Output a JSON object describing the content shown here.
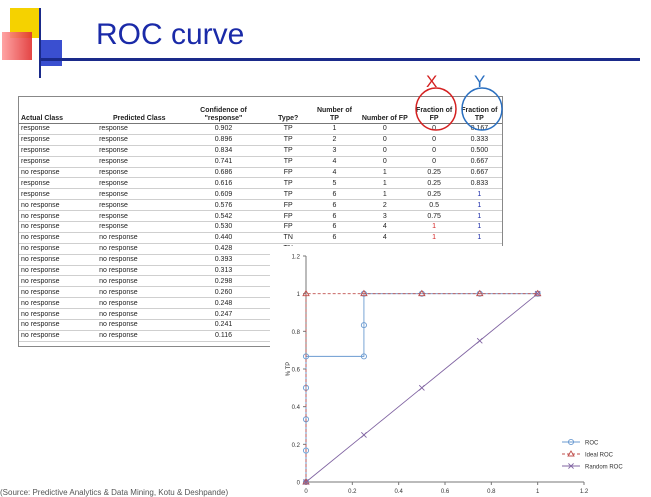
{
  "slide": {
    "title": "ROC curve",
    "x_marker": "X",
    "y_marker": "Y",
    "source": "(Source: Predictive Analytics & Data Mining, Kotu & Deshpande)",
    "colors": {
      "title": "#1a2aa8",
      "x_marker": "#d42020",
      "y_marker": "#2a6fc0",
      "fp_values": "#d42020",
      "tp_values": "#1a2aa8"
    }
  },
  "table": {
    "headers": [
      "Actual Class",
      "Predicted Class",
      "Confidence of \"response\"",
      "Type?",
      "Number of TP",
      "Number of FP",
      "Fraction of FP",
      "Fraction of TP"
    ],
    "rows": [
      [
        "response",
        "response",
        "0.902",
        "TP",
        "1",
        "0",
        "0",
        "0.167"
      ],
      [
        "response",
        "response",
        "0.896",
        "TP",
        "2",
        "0",
        "0",
        "0.333"
      ],
      [
        "response",
        "response",
        "0.834",
        "TP",
        "3",
        "0",
        "0",
        "0.500"
      ],
      [
        "response",
        "response",
        "0.741",
        "TP",
        "4",
        "0",
        "0",
        "0.667"
      ],
      [
        "no response",
        "response",
        "0.686",
        "FP",
        "4",
        "1",
        "0.25",
        "0.667"
      ],
      [
        "response",
        "response",
        "0.616",
        "TP",
        "5",
        "1",
        "0.25",
        "0.833"
      ],
      [
        "response",
        "response",
        "0.609",
        "TP",
        "6",
        "1",
        "0.25",
        "1"
      ],
      [
        "no response",
        "response",
        "0.576",
        "FP",
        "6",
        "2",
        "0.5",
        "1"
      ],
      [
        "no response",
        "response",
        "0.542",
        "FP",
        "6",
        "3",
        "0.75",
        "1"
      ],
      [
        "no response",
        "response",
        "0.530",
        "FP",
        "6",
        "4",
        "1",
        "1"
      ],
      [
        "no response",
        "no response",
        "0.440",
        "TN",
        "6",
        "4",
        "1",
        "1"
      ],
      [
        "no response",
        "no response",
        "0.428",
        "TN",
        "",
        "",
        "",
        ""
      ],
      [
        "no response",
        "no response",
        "0.393",
        "TN",
        "",
        "",
        "",
        ""
      ],
      [
        "no response",
        "no response",
        "0.313",
        "TN",
        "",
        "",
        "",
        ""
      ],
      [
        "no response",
        "no response",
        "0.298",
        "TN",
        "",
        "",
        "",
        ""
      ],
      [
        "no response",
        "no response",
        "0.260",
        "TN",
        "",
        "",
        "",
        ""
      ],
      [
        "no response",
        "no response",
        "0.248",
        "TN",
        "",
        "",
        "",
        ""
      ],
      [
        "no response",
        "no response",
        "0.247",
        "TN",
        "",
        "",
        "",
        ""
      ],
      [
        "no response",
        "no response",
        "0.241",
        "TN",
        "",
        "",
        "",
        ""
      ],
      [
        "no response",
        "no response",
        "0.116",
        "TN",
        "",
        "",
        "",
        ""
      ]
    ]
  },
  "chart_data": {
    "type": "line",
    "title": "",
    "xlabel": "% FP",
    "ylabel": "% TP",
    "xlim": [
      0,
      1.2
    ],
    "ylim": [
      0,
      1.2
    ],
    "xticks": [
      "0",
      "0.2",
      "0.4",
      "0.6",
      "0.8",
      "1",
      "1.2"
    ],
    "yticks": [
      "0",
      "0.2",
      "0.4",
      "0.6",
      "0.8",
      "1",
      "1.2"
    ],
    "legend_position": "bottom-right",
    "series": [
      {
        "name": "ROC",
        "color": "#6b9bd1",
        "marker": "circle",
        "line": "solid",
        "x": [
          0,
          0,
          0,
          0,
          0,
          0.25,
          0.25,
          0.25,
          0.5,
          0.75,
          1
        ],
        "y": [
          0,
          0.167,
          0.333,
          0.5,
          0.667,
          0.667,
          0.833,
          1,
          1,
          1,
          1
        ]
      },
      {
        "name": "Ideal ROC",
        "color": "#c0504d",
        "marker": "triangle",
        "line": "dashed",
        "x": [
          0,
          0,
          0.25,
          0.5,
          0.75,
          1
        ],
        "y": [
          0,
          1,
          1,
          1,
          1,
          1
        ]
      },
      {
        "name": "Random ROC",
        "color": "#8064a2",
        "marker": "x",
        "line": "solid",
        "x": [
          0,
          0.25,
          0.5,
          0.75,
          1
        ],
        "y": [
          0,
          0.25,
          0.5,
          0.75,
          1
        ]
      }
    ]
  }
}
